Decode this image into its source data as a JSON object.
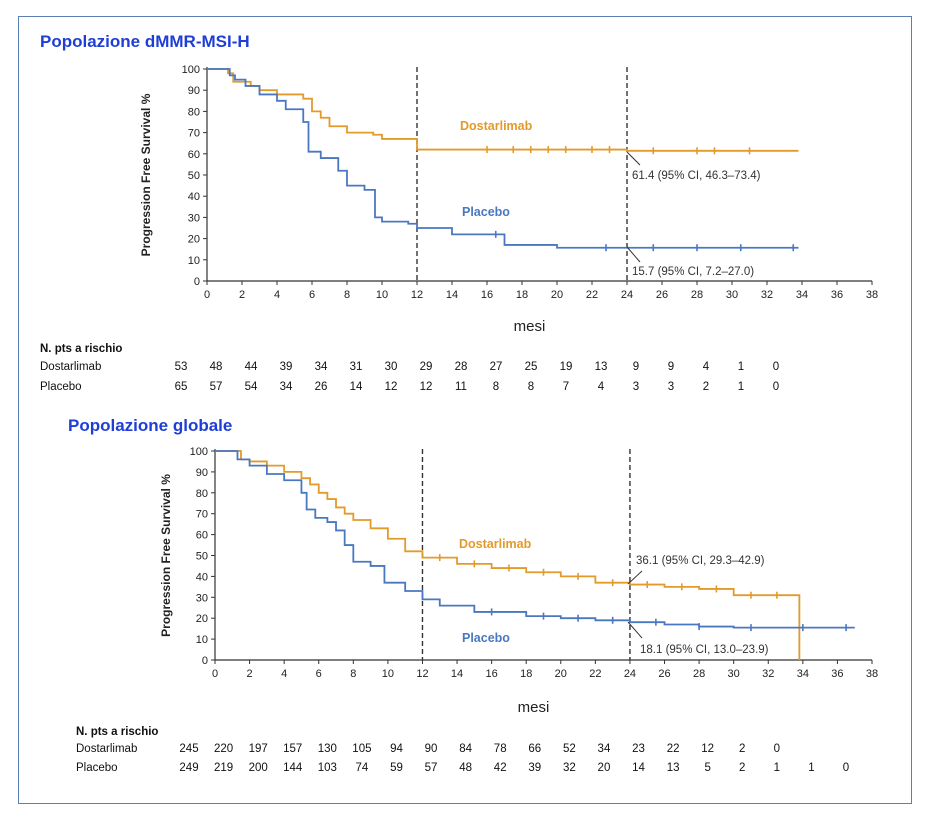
{
  "chart_data": [
    {
      "type": "line",
      "title": "Popolazione dMMR-MSI-H",
      "ylabel": "Progression Free Survival %",
      "xlabel": "mesi",
      "xlim": [
        0,
        38
      ],
      "ylim": [
        0,
        100
      ],
      "x_ticks": [
        0,
        2,
        4,
        6,
        8,
        10,
        12,
        14,
        16,
        18,
        20,
        22,
        24,
        26,
        28,
        30,
        32,
        34,
        36,
        38
      ],
      "y_ticks": [
        0,
        10,
        20,
        30,
        40,
        50,
        60,
        70,
        80,
        90,
        100
      ],
      "reference_lines_x": [
        12,
        24
      ],
      "series": [
        {
          "name": "Dostarlimab",
          "color": "#e39a2b",
          "x": [
            0,
            1.2,
            1.5,
            2.5,
            3,
            4,
            5.5,
            6,
            6.5,
            7,
            8,
            9.5,
            10,
            12,
            24,
            33.8
          ],
          "y": [
            100,
            98,
            94,
            92,
            90,
            88,
            86,
            80,
            77,
            73,
            70,
            69,
            67,
            62,
            61.4,
            61.4
          ],
          "censor_x": [
            16,
            17.5,
            18.5,
            19.5,
            20.5,
            22,
            23,
            25.5,
            28,
            29,
            31
          ]
        },
        {
          "name": "Placebo",
          "color": "#4a78c0",
          "x": [
            0,
            1.3,
            1.6,
            2.2,
            3,
            4,
            4.5,
            5.5,
            5.8,
            6.5,
            7.5,
            8,
            9,
            9.6,
            10,
            11.5,
            12,
            14,
            17,
            20,
            24,
            33.8
          ],
          "y": [
            100,
            97,
            95,
            92,
            88,
            85,
            81,
            75,
            61,
            58,
            52,
            45,
            43,
            30,
            28,
            27,
            25,
            22,
            17,
            15.7,
            15.7,
            15.7
          ],
          "censor_x": [
            16.5,
            22.8,
            25.5,
            28,
            30.5,
            33.5
          ]
        }
      ],
      "annotations": [
        {
          "text": "61.4 (95% CI, 46.3–73.4)",
          "x": 24,
          "y": 61.4
        },
        {
          "text": "15.7 (95% CI, 7.2–27.0)",
          "x": 24,
          "y": 15.7
        }
      ],
      "risk_table": {
        "header": "N. pts a rischio",
        "rows": [
          {
            "label": "Dostarlimab",
            "values": [
              "53",
              "48",
              "44",
              "39",
              "34",
              "31",
              "30",
              "29",
              "28",
              "27",
              "25",
              "19",
              "13",
              "9",
              "9",
              "4",
              "1",
              "0"
            ]
          },
          {
            "label": "Placebo",
            "values": [
              "65",
              "57",
              "54",
              "34",
              "26",
              "14",
              "12",
              "12",
              "11",
              "8",
              "8",
              "7",
              "4",
              "3",
              "3",
              "2",
              "1",
              "0"
            ]
          }
        ]
      }
    },
    {
      "type": "line",
      "title": "Popolazione globale",
      "ylabel": "Progression Free Survival %",
      "xlabel": "mesi",
      "xlim": [
        0,
        38
      ],
      "ylim": [
        0,
        100
      ],
      "x_ticks": [
        0,
        2,
        4,
        6,
        8,
        10,
        12,
        14,
        16,
        18,
        20,
        22,
        24,
        26,
        28,
        30,
        32,
        34,
        36,
        38
      ],
      "y_ticks": [
        0,
        10,
        20,
        30,
        40,
        50,
        60,
        70,
        80,
        90,
        100
      ],
      "reference_lines_x": [
        12,
        24
      ],
      "series": [
        {
          "name": "Dostarlimab",
          "color": "#e39a2b",
          "x": [
            0,
            1.5,
            2,
            3,
            4,
            5,
            5.5,
            6,
            6.5,
            7,
            7.5,
            8,
            9,
            10,
            11,
            12,
            14,
            16,
            18,
            20,
            22,
            24,
            26,
            28,
            30,
            33.8,
            33.8
          ],
          "y": [
            100,
            96,
            95,
            93,
            90,
            87,
            84,
            80,
            77,
            73,
            70,
            67,
            63,
            58,
            52,
            49,
            46,
            44,
            42,
            40,
            37,
            36.1,
            35,
            34,
            31,
            30,
            0
          ],
          "censor_x": [
            13,
            15,
            17,
            19,
            21,
            23,
            25,
            27,
            29,
            31,
            32.5
          ]
        },
        {
          "name": "Placebo",
          "color": "#4a78c0",
          "x": [
            0,
            1.3,
            2,
            3,
            4,
            5,
            5.3,
            5.8,
            6.5,
            7,
            7.5,
            8,
            9,
            9.8,
            11,
            12,
            13,
            15,
            18,
            20,
            22,
            24,
            26,
            28,
            30,
            34,
            37
          ],
          "y": [
            100,
            96,
            93,
            89,
            86,
            80,
            72,
            68,
            66,
            62,
            55,
            47,
            45,
            37,
            33,
            29,
            26,
            23,
            21,
            20,
            19,
            18.1,
            17,
            16,
            15.5,
            15.5,
            15.5
          ],
          "censor_x": [
            16,
            19,
            21,
            23,
            25.5,
            28,
            31,
            34,
            36.5
          ]
        }
      ],
      "annotations": [
        {
          "text": "36.1 (95% CI, 29.3–42.9)",
          "x": 24,
          "y": 36.1
        },
        {
          "text": "18.1 (95% CI, 13.0–23.9)",
          "x": 24,
          "y": 18.1
        }
      ],
      "risk_table": {
        "header": "N. pts a rischio",
        "rows": [
          {
            "label": "Dostarlimab",
            "values": [
              "245",
              "220",
              "197",
              "157",
              "130",
              "105",
              "94",
              "90",
              "84",
              "78",
              "66",
              "52",
              "34",
              "23",
              "22",
              "12",
              "2",
              "0"
            ]
          },
          {
            "label": "Placebo",
            "values": [
              "249",
              "219",
              "200",
              "144",
              "103",
              "74",
              "59",
              "57",
              "48",
              "42",
              "39",
              "32",
              "20",
              "14",
              "13",
              "5",
              "2",
              "1",
              "1",
              "0"
            ]
          }
        ]
      }
    }
  ]
}
